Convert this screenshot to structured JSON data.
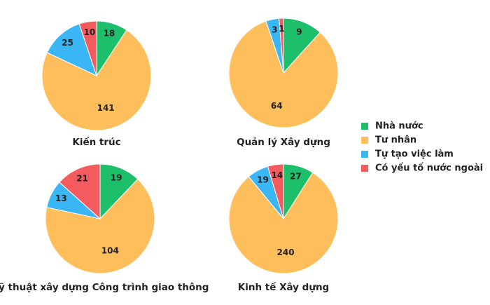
{
  "legend": {
    "labels": [
      "Nhà nước",
      "Tư nhân",
      "Tự tạo việc làm",
      "Có yếu tố nước ngoài"
    ],
    "colors": [
      "#1dbf6b",
      "#ffbe5c",
      "#3bb6f5",
      "#f45b5e"
    ]
  },
  "chart_data": [
    {
      "type": "pie",
      "title": "Kiến trúc",
      "values": [
        18,
        141,
        25,
        10
      ]
    },
    {
      "type": "pie",
      "title": "Quản lý Xây dựng",
      "values": [
        9,
        64,
        3,
        1
      ]
    },
    {
      "type": "pie",
      "title": "Kỹ thuật xây dựng Công trình giao thông",
      "values": [
        19,
        104,
        13,
        21
      ]
    },
    {
      "type": "pie",
      "title": "Kinh tế Xây dựng",
      "values": [
        27,
        240,
        19,
        14
      ]
    }
  ]
}
